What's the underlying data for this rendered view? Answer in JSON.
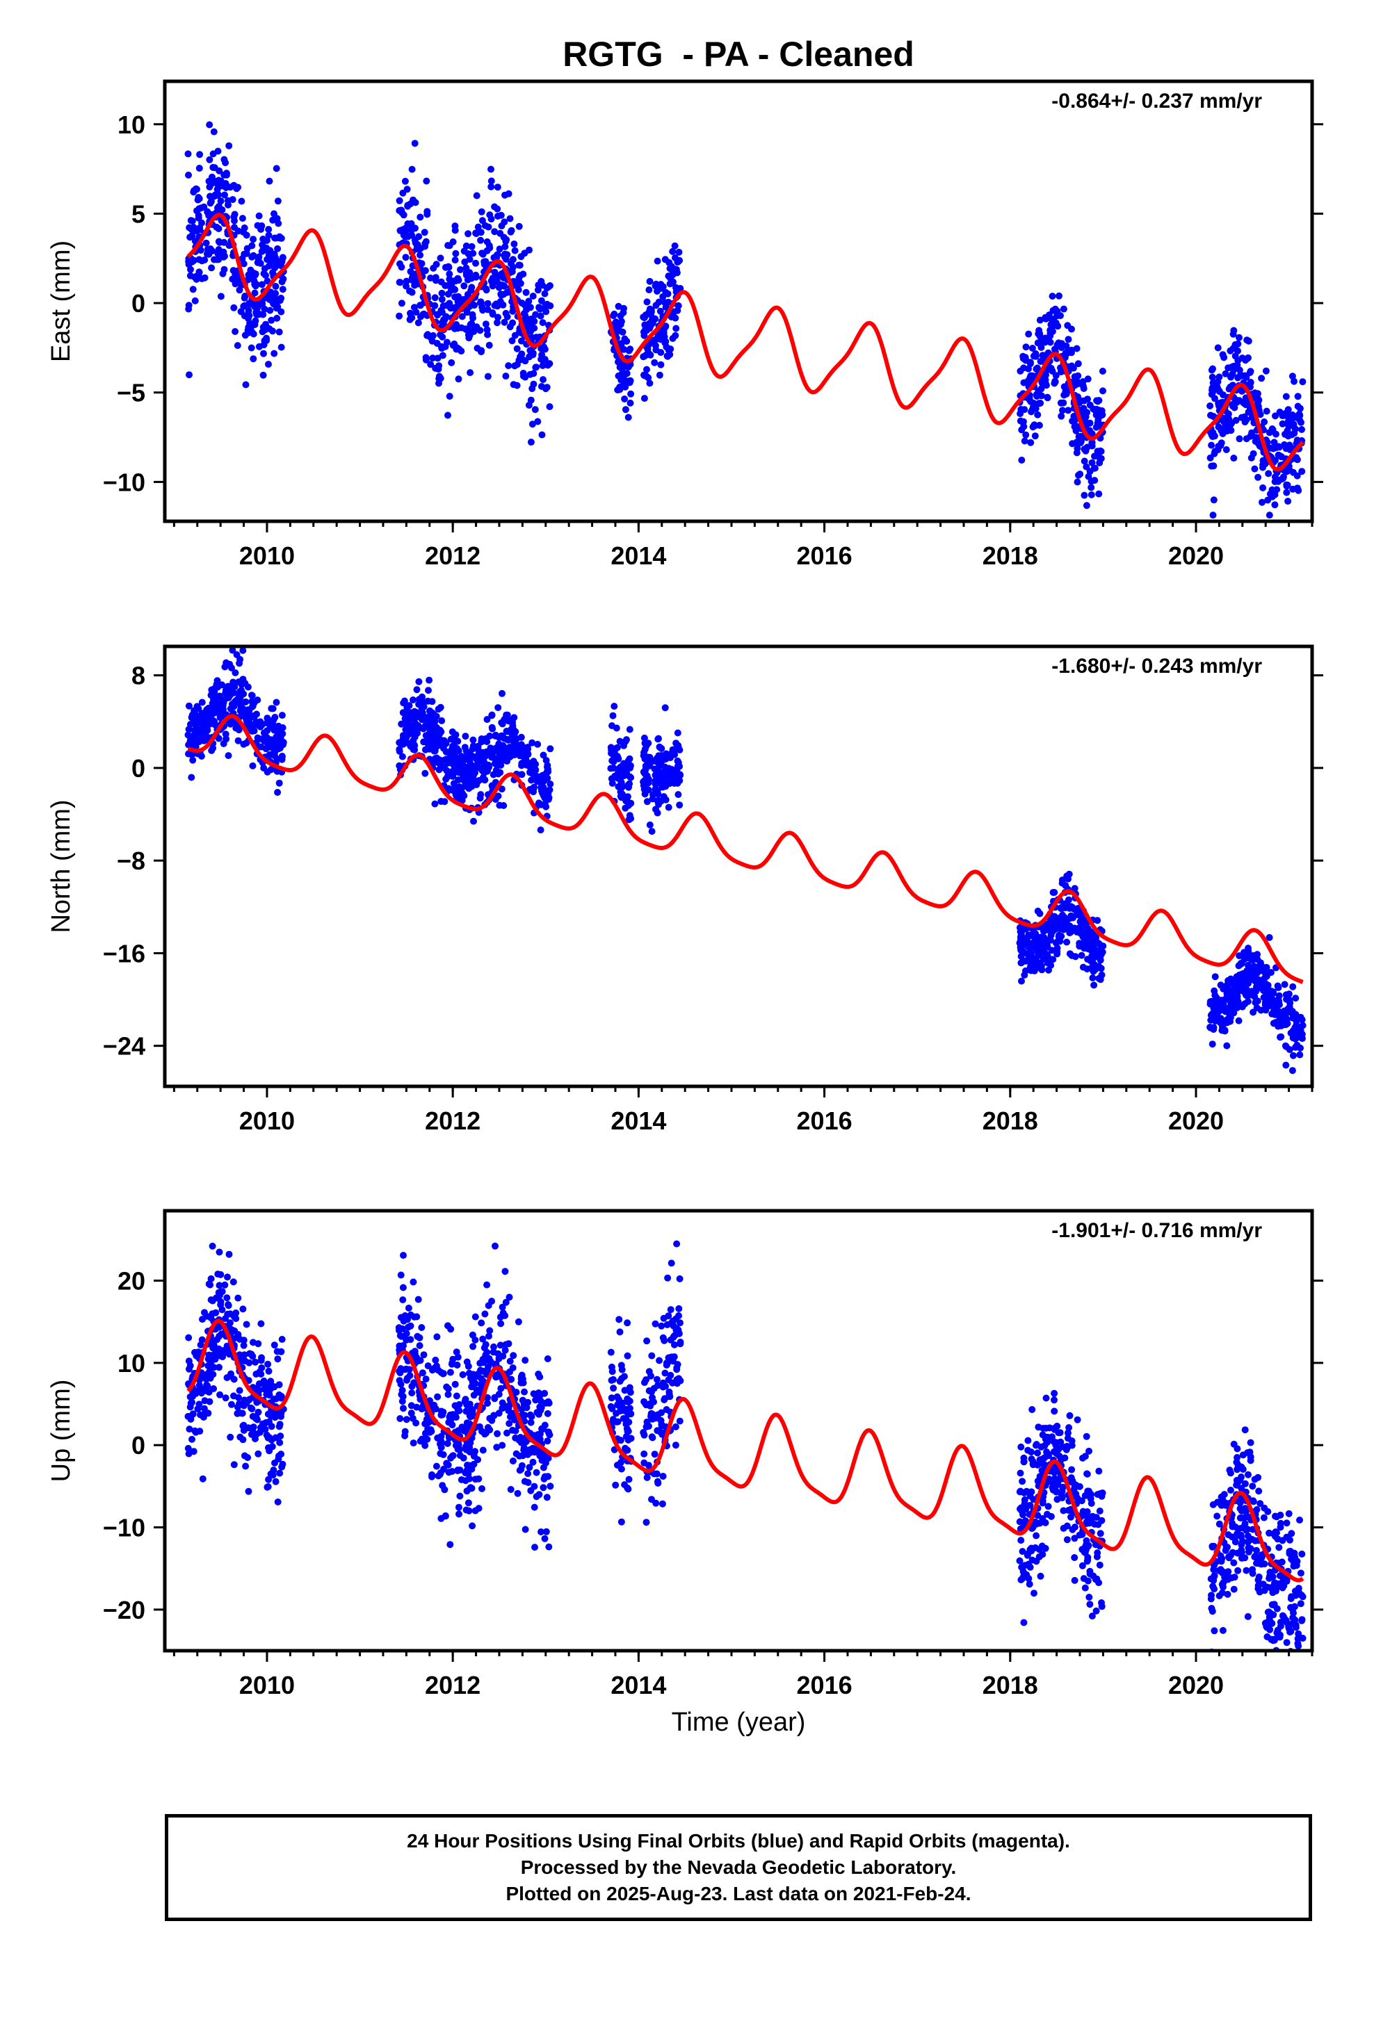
{
  "figure": {
    "title": "RGTG  - PA - Cleaned",
    "xlabel": "Time (year)",
    "colors": {
      "data": "#0000ff",
      "model": "#ff0000",
      "axes": "#000000"
    }
  },
  "caption": {
    "lines": [
      "24 Hour Positions Using Final Orbits (blue) and Rapid Orbits (magenta).",
      "Processed by the Nevada Geodetic Laboratory.",
      "Plotted on 2025-Aug-23. Last data on 2021-Feb-24."
    ]
  },
  "chart_data": [
    {
      "type": "scatter",
      "component": "east",
      "ylabel": "East (mm)",
      "rate_label": "-0.864+/- 0.237 mm/yr",
      "xlim": [
        2008.9,
        2021.25
      ],
      "ylim": [
        -12.2,
        12.4
      ],
      "xticks": [
        2010,
        2012,
        2014,
        2016,
        2018,
        2020
      ],
      "yticks": [
        10,
        5,
        0,
        -5,
        -10
      ],
      "ytick_labels": [
        "10",
        "5",
        "0",
        "−5",
        "−10"
      ],
      "grid": false,
      "model": {
        "offset": 2.9,
        "trend": -0.864,
        "t0": 2009.2,
        "annual_amp": 2.0,
        "annual_phase": 5.1,
        "semiannual_amp": 0.5,
        "semiannual_phase": 1.0
      },
      "segments": [
        {
          "start": 2009.15,
          "end": 2010.18,
          "spread": 2.0,
          "bias": 0.3
        },
        {
          "start": 2011.42,
          "end": 2013.05,
          "spread": 2.1,
          "bias": 0.1
        },
        {
          "start": 2013.7,
          "end": 2013.92,
          "spread": 1.2,
          "bias": 0.0
        },
        {
          "start": 2014.05,
          "end": 2014.45,
          "spread": 1.7,
          "bias": 0.0
        },
        {
          "start": 2018.1,
          "end": 2019.0,
          "spread": 1.5,
          "bias": 0.0
        },
        {
          "start": 2020.15,
          "end": 2021.15,
          "spread": 1.6,
          "bias": 0.2
        }
      ]
    },
    {
      "type": "scatter",
      "component": "north",
      "ylabel": "North (mm)",
      "rate_label": "-1.680+/- 0.243 mm/yr",
      "xlim": [
        2008.9,
        2021.25
      ],
      "ylim": [
        -27.5,
        10.5
      ],
      "xticks": [
        2010,
        2012,
        2014,
        2016,
        2018,
        2020
      ],
      "yticks": [
        8,
        0,
        -8,
        -16,
        -24
      ],
      "ytick_labels": [
        "8",
        "0",
        "−8",
        "−16",
        "−24"
      ],
      "grid": false,
      "model": {
        "offset": 3.0,
        "trend": -1.68,
        "t0": 2009.2,
        "annual_amp": 1.8,
        "annual_phase": 3.8,
        "semiannual_amp": 0.4,
        "semiannual_phase": 0.0
      },
      "segments": [
        {
          "start": 2009.15,
          "end": 2010.18,
          "spread": 1.6,
          "bias": 1.5
        },
        {
          "start": 2011.42,
          "end": 2013.05,
          "spread": 1.6,
          "bias": 3.0
        },
        {
          "start": 2013.7,
          "end": 2013.92,
          "spread": 1.8,
          "bias": 4.0
        },
        {
          "start": 2014.05,
          "end": 2014.45,
          "spread": 1.7,
          "bias": 6.0
        },
        {
          "start": 2018.1,
          "end": 2019.0,
          "spread": 1.4,
          "bias": -2.0
        },
        {
          "start": 2020.15,
          "end": 2021.15,
          "spread": 1.3,
          "bias": -4.0
        }
      ]
    },
    {
      "type": "scatter",
      "component": "up",
      "ylabel": "Up (mm)",
      "rate_label": "-1.901+/- 0.716 mm/yr",
      "xlim": [
        2008.9,
        2021.25
      ],
      "ylim": [
        -25,
        28.5
      ],
      "xticks": [
        2010,
        2012,
        2014,
        2016,
        2018,
        2020
      ],
      "yticks": [
        20,
        10,
        0,
        -10,
        -20
      ],
      "ytick_labels": [
        "20",
        "10",
        "0",
        "−10",
        "−20"
      ],
      "grid": false,
      "model": {
        "offset": 10.0,
        "trend": -1.901,
        "t0": 2009.2,
        "annual_amp": 4.5,
        "annual_phase": 4.7,
        "semiannual_amp": 1.2,
        "semiannual_phase": 2.0
      },
      "segments": [
        {
          "start": 2009.15,
          "end": 2010.18,
          "spread": 4.5,
          "bias": -1.0
        },
        {
          "start": 2011.42,
          "end": 2013.05,
          "spread": 5.0,
          "bias": 0.0
        },
        {
          "start": 2013.7,
          "end": 2013.92,
          "spread": 4.5,
          "bias": 4.0
        },
        {
          "start": 2014.05,
          "end": 2014.45,
          "spread": 5.0,
          "bias": 6.0
        },
        {
          "start": 2018.1,
          "end": 2019.0,
          "spread": 4.5,
          "bias": 0.5
        },
        {
          "start": 2020.15,
          "end": 2021.15,
          "spread": 4.5,
          "bias": -2.0
        }
      ]
    }
  ]
}
